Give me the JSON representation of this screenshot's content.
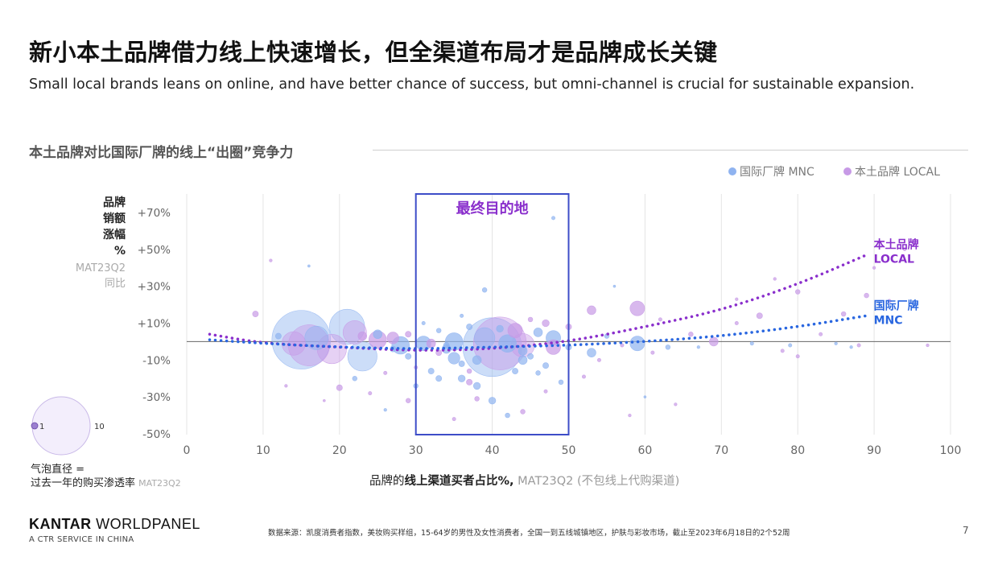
{
  "header": {
    "title": "新小本土品牌借力线上快速增长，但全渠道布局才是品牌成长关键",
    "subtitle": "Small local brands leans on online, and have better chance of success, but omni-channel is crucial for sustainable expansion."
  },
  "section": {
    "title": "本土品牌对比国际厂牌的线上“出圈”竞争力"
  },
  "legend": {
    "mnc_label": "国际厂牌 MNC",
    "local_label": "本土品牌 LOCAL"
  },
  "colors": {
    "mnc": "#8fb3f0",
    "local": "#c79ae6",
    "mnc_trend": "#2a67e0",
    "local_trend": "#8a2fcc",
    "box": "#3d4dc8",
    "box_label": "#8a2fcc",
    "grid": "#e4e4e4",
    "axis": "#666666"
  },
  "y_axis": {
    "label_lines": [
      "品牌",
      "销额",
      "涨幅",
      "%"
    ],
    "sub_lines": [
      "MAT23Q2",
      "同比"
    ]
  },
  "x_axis": {
    "prefix": "品牌的",
    "bold": "线上渠道买者占比%",
    "comma": ",",
    "suffix": " MAT23Q2 (不包线上代购渠道)"
  },
  "bubble_legend": {
    "small_label": "1",
    "large_label": "10",
    "caption_line1": "气泡直径 =",
    "caption_line2": "过去一年的购买渗透率",
    "caption_sub": "MAT23Q2"
  },
  "chart_data": {
    "type": "scatter",
    "xlabel": "品牌的线上渠道买者占比%, MAT23Q2 (不包线上代购渠道)",
    "ylabel": "品牌销额涨幅% MAT23Q2同比",
    "xlim": [
      0,
      100
    ],
    "ylim": [
      -50,
      75
    ],
    "x_ticks": [
      0,
      10,
      20,
      30,
      40,
      50,
      60,
      70,
      80,
      90,
      100
    ],
    "y_ticks": [
      {
        "value": 70,
        "label": "+70%"
      },
      {
        "value": 50,
        "label": "+50%"
      },
      {
        "value": 30,
        "label": "+30%"
      },
      {
        "value": 10,
        "label": "+10%"
      },
      {
        "value": -10,
        "label": "-10%"
      },
      {
        "value": -30,
        "label": "-30%"
      },
      {
        "value": -50,
        "label": "-50%"
      }
    ],
    "vertical_grid": true,
    "zero_line": true,
    "highlight_box": {
      "x_range": [
        30,
        50
      ],
      "y_range": [
        -50,
        80
      ],
      "label": "最终目的地"
    },
    "trend_lines": [
      {
        "name": "本土品牌 LOCAL",
        "label_lines": [
          "本土品牌",
          "LOCAL"
        ],
        "series": "local",
        "points": [
          [
            3,
            4
          ],
          [
            10,
            -1
          ],
          [
            20,
            -3
          ],
          [
            30,
            -5
          ],
          [
            40,
            -4
          ],
          [
            50,
            0
          ],
          [
            60,
            8
          ],
          [
            70,
            17
          ],
          [
            80,
            31
          ],
          [
            89,
            47
          ]
        ]
      },
      {
        "name": "国际厂牌 MNC",
        "label_lines": [
          "国际厂牌",
          "MNC"
        ],
        "series": "mnc",
        "points": [
          [
            3,
            1
          ],
          [
            10,
            -1
          ],
          [
            20,
            -3
          ],
          [
            30,
            -4
          ],
          [
            40,
            -3
          ],
          [
            50,
            -2
          ],
          [
            60,
            0
          ],
          [
            70,
            3
          ],
          [
            80,
            8
          ],
          [
            89,
            14
          ]
        ]
      }
    ],
    "series": [
      {
        "name": "国际厂牌 MNC",
        "key": "mnc",
        "points": [
          [
            15,
            1,
            10
          ],
          [
            21,
            8,
            6
          ],
          [
            17,
            2,
            4
          ],
          [
            23,
            -8,
            5
          ],
          [
            28,
            -2,
            3
          ],
          [
            31,
            -1,
            2.5
          ],
          [
            35,
            0,
            3
          ],
          [
            39,
            2,
            3.5
          ],
          [
            40,
            -3,
            10
          ],
          [
            42,
            -1,
            3
          ],
          [
            46,
            5,
            1.5
          ],
          [
            48,
            2,
            2.5
          ],
          [
            53,
            -6,
            1.5
          ],
          [
            59,
            -1,
            2.5
          ],
          [
            35,
            -9,
            2
          ],
          [
            38,
            -10,
            1.5
          ],
          [
            36,
            -20,
            1.2
          ],
          [
            38,
            -24,
            1.2
          ],
          [
            40,
            -32,
            1.2
          ],
          [
            43,
            -16,
            1
          ],
          [
            46,
            -17,
            0.8
          ],
          [
            49,
            -22,
            0.8
          ],
          [
            44,
            -10,
            1.5
          ],
          [
            47,
            -13,
            1
          ],
          [
            50,
            -3,
            1
          ],
          [
            32,
            -16,
            1
          ],
          [
            33,
            -20,
            1
          ],
          [
            22,
            -20,
            0.8
          ],
          [
            26,
            -37,
            0.5
          ],
          [
            16,
            41,
            0.4
          ],
          [
            29,
            -8,
            1
          ],
          [
            34,
            -4,
            1.5
          ],
          [
            25,
            4,
            1.5
          ],
          [
            12,
            3,
            1
          ],
          [
            55,
            3,
            0.8
          ],
          [
            63,
            -3,
            0.8
          ],
          [
            74,
            -1,
            0.6
          ],
          [
            79,
            -2,
            0.6
          ],
          [
            85,
            -1,
            0.5
          ],
          [
            41,
            7,
            1.2
          ],
          [
            37,
            8,
            1
          ],
          [
            39,
            28,
            0.8
          ],
          [
            48,
            67,
            0.6
          ],
          [
            44,
            -5,
            1.5
          ],
          [
            45,
            -8,
            1
          ],
          [
            36,
            -12,
            1
          ],
          [
            34,
            -2,
            1
          ],
          [
            33,
            6,
            0.8
          ],
          [
            27,
            -4,
            1
          ],
          [
            30,
            -24,
            0.8
          ],
          [
            42,
            -40,
            0.8
          ],
          [
            36,
            14,
            0.6
          ],
          [
            31,
            10,
            0.6
          ],
          [
            60,
            -30,
            0.4
          ],
          [
            56,
            30,
            0.4
          ],
          [
            67,
            -3,
            0.5
          ],
          [
            87,
            -3,
            0.5
          ]
        ]
      },
      {
        "name": "本土品牌 LOCAL",
        "key": "local",
        "points": [
          [
            16,
            -2,
            7
          ],
          [
            19,
            -4,
            5
          ],
          [
            14,
            -1,
            4
          ],
          [
            22,
            5,
            4
          ],
          [
            25,
            1,
            3
          ],
          [
            27,
            2,
            2
          ],
          [
            41,
            -1,
            9
          ],
          [
            44,
            -2,
            4
          ],
          [
            43,
            6,
            2.5
          ],
          [
            48,
            -3,
            2.5
          ],
          [
            59,
            18,
            2.5
          ],
          [
            53,
            17,
            1.5
          ],
          [
            69,
            0,
            1.5
          ],
          [
            75,
            14,
            1
          ],
          [
            80,
            27,
            0.8
          ],
          [
            89,
            25,
            0.8
          ],
          [
            86,
            15,
            0.8
          ],
          [
            92,
            22,
            0.6
          ],
          [
            20,
            -25,
            1
          ],
          [
            37,
            -22,
            1
          ],
          [
            29,
            -32,
            0.8
          ],
          [
            38,
            -31,
            0.8
          ],
          [
            44,
            -38,
            0.8
          ],
          [
            35,
            -42,
            0.6
          ],
          [
            58,
            -40,
            0.5
          ],
          [
            64,
            -34,
            0.5
          ],
          [
            11,
            44,
            0.5
          ],
          [
            9,
            15,
            1
          ],
          [
            23,
            3,
            1.5
          ],
          [
            32,
            -1,
            1.5
          ],
          [
            47,
            10,
            1.2
          ],
          [
            50,
            8,
            1
          ],
          [
            54,
            -10,
            0.6
          ],
          [
            61,
            -6,
            0.6
          ],
          [
            66,
            4,
            0.8
          ],
          [
            72,
            10,
            0.6
          ],
          [
            78,
            -5,
            0.6
          ],
          [
            80,
            -8,
            0.6
          ],
          [
            83,
            4,
            0.6
          ],
          [
            88,
            -2,
            0.6
          ],
          [
            90,
            40,
            0.5
          ],
          [
            94,
            50,
            0.5
          ],
          [
            72,
            23,
            0.5
          ],
          [
            77,
            34,
            0.5
          ],
          [
            62,
            12,
            0.6
          ],
          [
            57,
            -2,
            0.6
          ],
          [
            45,
            12,
            0.8
          ],
          [
            29,
            4,
            1
          ],
          [
            33,
            -6,
            1
          ],
          [
            37,
            -16,
            0.8
          ],
          [
            30,
            -14,
            0.6
          ],
          [
            26,
            -17,
            0.6
          ],
          [
            24,
            -28,
            0.6
          ],
          [
            13,
            -24,
            0.5
          ],
          [
            18,
            -32,
            0.4
          ],
          [
            47,
            -27,
            0.6
          ],
          [
            52,
            -19,
            0.6
          ],
          [
            97,
            -2,
            0.5
          ]
        ]
      }
    ]
  },
  "footer": {
    "brand_bold": "KANTAR",
    "brand_rest": " WORLDPANEL",
    "brand_sub": "A CTR SERVICE IN CHINA",
    "source": "数据来源：凯度消费者指数，美妆购买样组，15-64岁的男性及女性消费者，全国一到五线城镇地区，护肤与彩妆市场，截止至2023年6月18日的2个52周",
    "page": "7"
  }
}
